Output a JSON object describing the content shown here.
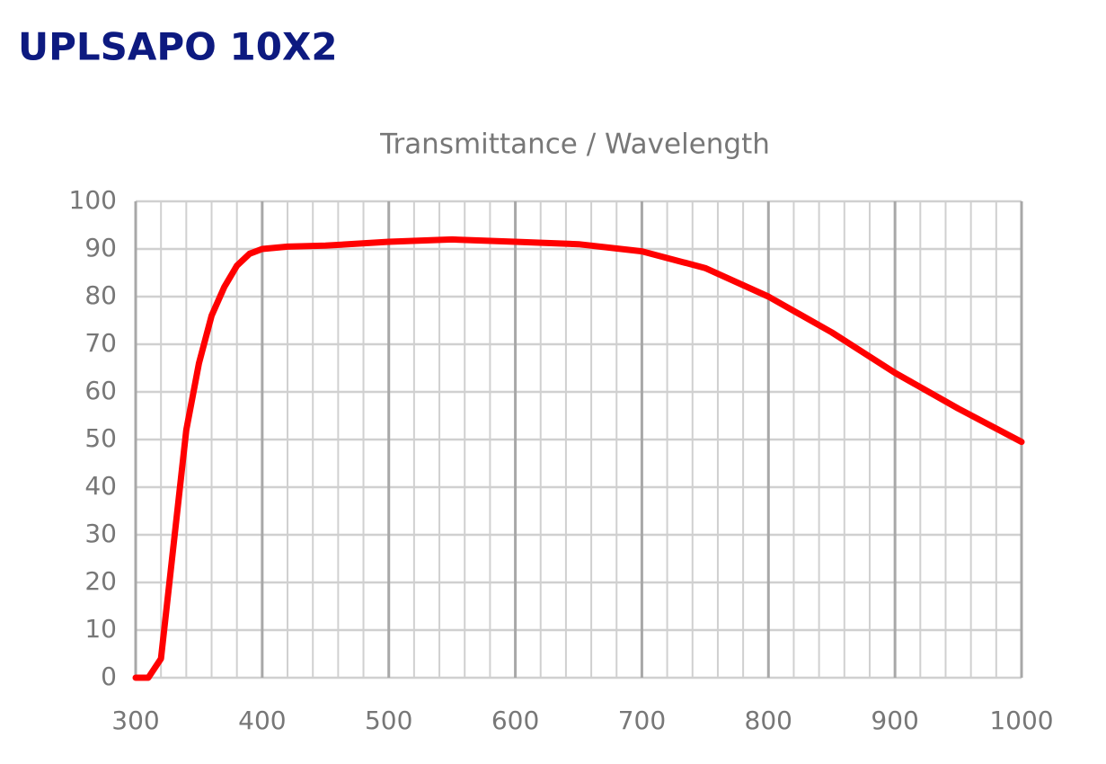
{
  "header": {
    "title": "UPLSAPO 10X2"
  },
  "chart_data": {
    "type": "line",
    "title": "Transmittance / Wavelength",
    "x": [
      300,
      310,
      320,
      330,
      340,
      350,
      360,
      370,
      380,
      390,
      400,
      420,
      450,
      500,
      550,
      600,
      650,
      700,
      750,
      800,
      850,
      900,
      950,
      1000
    ],
    "series": [
      {
        "color": "#ff0000",
        "values": [
          0,
          0,
          4,
          28,
          52,
          66,
          76,
          82,
          86.5,
          89,
          90,
          90.5,
          90.7,
          91.5,
          92,
          91.5,
          91,
          89.5,
          86,
          80,
          72.5,
          64,
          56.5,
          49.5
        ]
      }
    ],
    "xlim": [
      300,
      1000
    ],
    "ylim": [
      0,
      100
    ],
    "xticks": [
      300,
      400,
      500,
      600,
      700,
      800,
      900,
      1000
    ],
    "minor_xticks": [
      320,
      340,
      360,
      380,
      420,
      440,
      460,
      480,
      520,
      540,
      560,
      580,
      620,
      640,
      660,
      680,
      720,
      740,
      760,
      780,
      820,
      840,
      860,
      880,
      920,
      940,
      960,
      980
    ],
    "yticks": [
      0,
      10,
      20,
      30,
      40,
      50,
      60,
      70,
      80,
      90,
      100
    ],
    "grid": true
  }
}
